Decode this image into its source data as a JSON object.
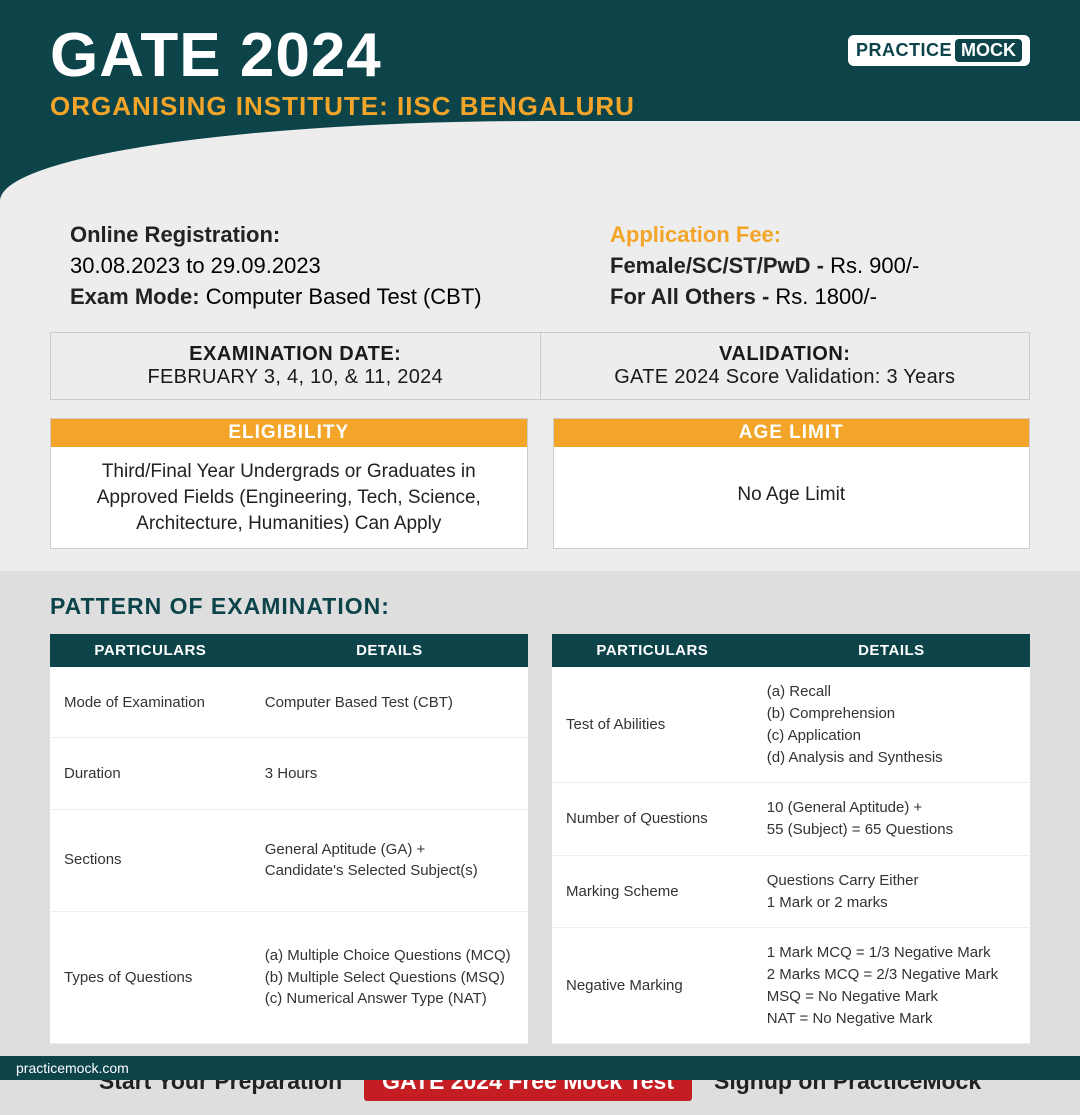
{
  "header": {
    "title": "GATE 2024",
    "subtitle": "ORGANISING INSTITUTE: IISC BENGALURU",
    "logo_p1": "PRACTICE",
    "logo_p2": "MOCK"
  },
  "info": {
    "reg_label": "Online Registration:",
    "reg_value": "30.08.2023 to 29.09.2023",
    "mode_label": "Exam Mode:",
    "mode_value": " Computer Based Test (CBT)",
    "fee_label": "Application Fee:",
    "fee_row1_label": "Female/SC/ST/PwD - ",
    "fee_row1_value": "Rs. 900/-",
    "fee_row2_label": "For All Others - ",
    "fee_row2_value": "Rs. 1800/-"
  },
  "boxes": {
    "exam_date_h": "EXAMINATION DATE:",
    "exam_date_v": "FEBRUARY 3, 4, 10, & 11, 2024",
    "validation_h": "VALIDATION:",
    "validation_v": "GATE 2024 Score Validation: 3 Years"
  },
  "cards": {
    "elig_h": "ELIGIBILITY",
    "elig_b": "Third/Final Year Undergrads or Graduates in Approved Fields (Engineering, Tech, Science, Architecture, Humanities) Can Apply",
    "age_h": "AGE LIMIT",
    "age_b": "No Age Limit"
  },
  "pattern_title": "PATTERN OF EXAMINATION:",
  "tbl_headers": {
    "c1": "PARTICULARS",
    "c2": "DETAILS"
  },
  "tbl1": [
    {
      "p": "Mode of Examination",
      "d": "Computer Based Test (CBT)"
    },
    {
      "p": "Duration",
      "d": "3 Hours"
    },
    {
      "p": "Sections",
      "d": "General Aptitude (GA) +\nCandidate's Selected Subject(s)"
    },
    {
      "p": "Types of Questions",
      "d": "(a) Multiple Choice Questions (MCQ)\n(b) Multiple Select Questions (MSQ)\n(c) Numerical Answer Type (NAT)"
    }
  ],
  "tbl2": [
    {
      "p": "Test of Abilities",
      "d": "(a) Recall\n(b) Comprehension\n(c) Application\n(d) Analysis and Synthesis"
    },
    {
      "p": "Number of Questions",
      "d": "10 (General Aptitude) +\n55 (Subject) = 65 Questions"
    },
    {
      "p": "Marking Scheme",
      "d": "Questions Carry Either\n1 Mark or 2 marks"
    },
    {
      "p": "Negative Marking",
      "d": "1 Mark MCQ = 1/3 Negative Mark\n2 Marks MCQ = 2/3 Negative Mark\nMSQ = No Negative Mark\nNAT = No Negative Mark"
    }
  ],
  "cta": {
    "left": "Start Your Preparation",
    "btn": "GATE 2024 Free Mock Test",
    "right": "Signup on PracticeMock"
  },
  "footer": "practicemock.com"
}
